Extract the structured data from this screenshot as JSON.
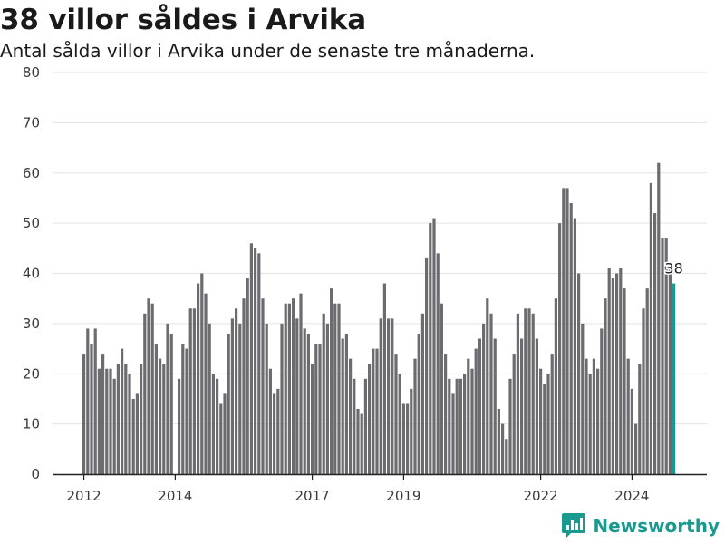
{
  "colors": {
    "bar": "#6b6b70",
    "highlight": "#1a9a8f",
    "axis": "#222222",
    "grid": "#e3e3e3",
    "brand": "#1a9a8f"
  },
  "brand": {
    "name": "Newsworthy",
    "icon": "bar-chart-logo-icon"
  },
  "chart_data": {
    "type": "bar",
    "title": "38 villor såldes i Arvika",
    "subtitle": "Antal sålda villor i Arvika under de senaste tre månaderna.",
    "xlabel": "",
    "ylabel": "",
    "ylim": [
      0,
      80
    ],
    "yticks": [
      0,
      10,
      20,
      30,
      40,
      50,
      60,
      70,
      80
    ],
    "grid": true,
    "x_start": "2012-01",
    "x_ticks": [
      "2012",
      "2014",
      "2017",
      "2019",
      "2022",
      "2024"
    ],
    "highlight_last": true,
    "last_value_label": "38",
    "values": [
      24,
      29,
      26,
      29,
      21,
      24,
      21,
      21,
      19,
      22,
      25,
      22,
      20,
      15,
      16,
      22,
      32,
      35,
      34,
      26,
      23,
      22,
      30,
      28,
      null,
      19,
      26,
      25,
      33,
      33,
      38,
      40,
      36,
      30,
      20,
      19,
      14,
      16,
      28,
      31,
      33,
      30,
      35,
      39,
      46,
      45,
      44,
      35,
      30,
      21,
      16,
      17,
      30,
      34,
      34,
      35,
      31,
      36,
      29,
      28,
      22,
      26,
      26,
      32,
      30,
      37,
      34,
      34,
      27,
      28,
      23,
      19,
      13,
      12,
      19,
      22,
      25,
      25,
      31,
      38,
      31,
      31,
      24,
      20,
      14,
      14,
      17,
      23,
      28,
      32,
      43,
      50,
      51,
      44,
      34,
      24,
      19,
      16,
      19,
      19,
      20,
      23,
      21,
      25,
      27,
      30,
      35,
      32,
      27,
      13,
      10,
      7,
      19,
      24,
      32,
      27,
      33,
      33,
      32,
      27,
      21,
      18,
      20,
      24,
      35,
      50,
      57,
      57,
      54,
      51,
      40,
      30,
      23,
      20,
      23,
      21,
      29,
      35,
      41,
      39,
      40,
      41,
      37,
      23,
      17,
      10,
      22,
      33,
      37,
      58,
      52,
      62,
      47,
      47,
      41,
      38
    ]
  }
}
